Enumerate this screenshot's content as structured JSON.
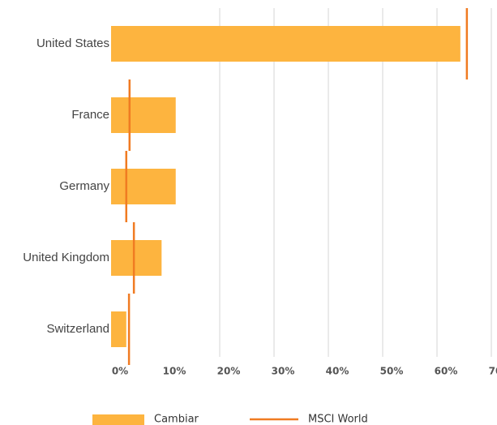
{
  "chart_data": {
    "type": "bar",
    "orientation": "horizontal",
    "categories": [
      "United States",
      "France",
      "Germany",
      "United Kingdom",
      "Switzerland"
    ],
    "series": [
      {
        "name": "Cambiar",
        "color": "#fdb43f",
        "kind": "bar",
        "values": [
          64.3,
          11.9,
          11.9,
          9.3,
          2.8
        ]
      },
      {
        "name": "MSCI World",
        "color": "#f07b22",
        "kind": "marker-line",
        "values": [
          65.5,
          3.4,
          2.8,
          4.2,
          3.3
        ]
      }
    ],
    "xlim": [
      0,
      70
    ],
    "xticks": [
      {
        "value": 0,
        "label": "0%"
      },
      {
        "value": 10,
        "label": "10%"
      },
      {
        "value": 20,
        "label": "20%"
      },
      {
        "value": 30,
        "label": "30%"
      },
      {
        "value": 40,
        "label": "40%"
      },
      {
        "value": 50,
        "label": "50%"
      },
      {
        "value": 60,
        "label": "60%"
      },
      {
        "value": 70,
        "label": "70%"
      }
    ],
    "grid": true
  }
}
